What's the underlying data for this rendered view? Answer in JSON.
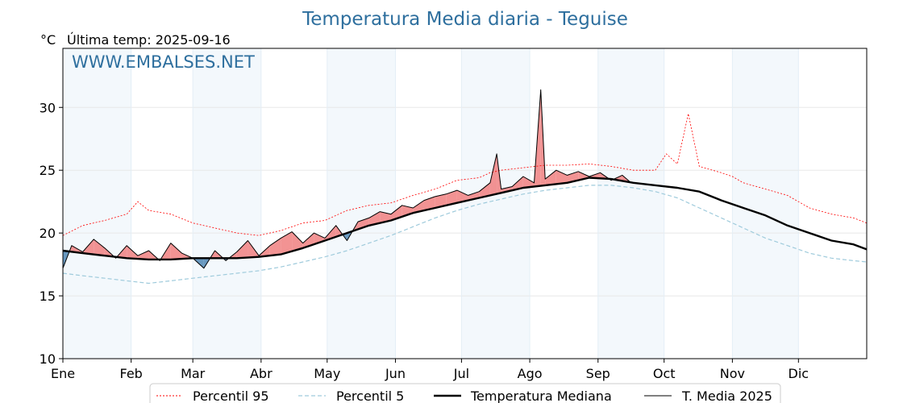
{
  "chart_data": {
    "type": "line",
    "title": "Temperatura Media diaria - Teguise",
    "unit_label": "°C",
    "last_temp_label": "Última temp: 2025-09-16",
    "watermark": "WWW.EMBALSES.NET",
    "ylim": [
      10,
      34.7
    ],
    "yticks": [
      10,
      15,
      20,
      25,
      30
    ],
    "xlim": [
      1,
      366
    ],
    "months": [
      {
        "label": "Ene",
        "day": 1
      },
      {
        "label": "Feb",
        "day": 32
      },
      {
        "label": "Mar",
        "day": 60
      },
      {
        "label": "Abr",
        "day": 91
      },
      {
        "label": "May",
        "day": 121
      },
      {
        "label": "Jun",
        "day": 152
      },
      {
        "label": "Jul",
        "day": 182
      },
      {
        "label": "Ago",
        "day": 213
      },
      {
        "label": "Sep",
        "day": 244
      },
      {
        "label": "Oct",
        "day": 274
      },
      {
        "label": "Nov",
        "day": 305
      },
      {
        "label": "Dic",
        "day": 335
      }
    ],
    "series": [
      {
        "name": "Percentil 95",
        "color": "#ff0000",
        "x": [
          1,
          10,
          20,
          30,
          35,
          40,
          50,
          60,
          70,
          80,
          90,
          100,
          110,
          120,
          130,
          140,
          150,
          160,
          170,
          180,
          190,
          195,
          200,
          210,
          220,
          230,
          240,
          250,
          260,
          270,
          275,
          280,
          285,
          290,
          300,
          305,
          310,
          320,
          330,
          340,
          350,
          360,
          366
        ],
        "y": [
          19.8,
          20.6,
          21.0,
          21.5,
          22.5,
          21.8,
          21.5,
          20.8,
          20.4,
          20.0,
          19.8,
          20.2,
          20.8,
          21.0,
          21.8,
          22.2,
          22.4,
          23.0,
          23.5,
          24.2,
          24.4,
          24.8,
          25.0,
          25.2,
          25.4,
          25.4,
          25.5,
          25.3,
          25.0,
          25.0,
          26.3,
          25.5,
          29.5,
          25.3,
          24.8,
          24.5,
          24.0,
          23.5,
          23.0,
          22.0,
          21.5,
          21.2,
          20.8
        ]
      },
      {
        "name": "Percentil 5",
        "color": "#9fcbdc",
        "x": [
          1,
          10,
          20,
          30,
          40,
          50,
          60,
          70,
          80,
          90,
          100,
          110,
          120,
          130,
          140,
          150,
          160,
          170,
          180,
          190,
          200,
          210,
          220,
          230,
          240,
          250,
          260,
          270,
          280,
          290,
          300,
          310,
          320,
          330,
          340,
          350,
          360,
          366
        ],
        "y": [
          16.8,
          16.6,
          16.4,
          16.2,
          16.0,
          16.2,
          16.4,
          16.6,
          16.8,
          17.0,
          17.3,
          17.7,
          18.1,
          18.6,
          19.2,
          19.8,
          20.5,
          21.2,
          21.8,
          22.3,
          22.7,
          23.1,
          23.4,
          23.6,
          23.8,
          23.8,
          23.6,
          23.3,
          22.8,
          22.0,
          21.2,
          20.4,
          19.6,
          19.0,
          18.4,
          18.0,
          17.8,
          17.7
        ]
      },
      {
        "name": "Temperatura Mediana",
        "color": "#000000",
        "x": [
          1,
          10,
          20,
          30,
          40,
          50,
          60,
          70,
          80,
          90,
          100,
          110,
          120,
          130,
          140,
          150,
          160,
          170,
          180,
          190,
          200,
          210,
          220,
          230,
          240,
          250,
          260,
          270,
          280,
          290,
          300,
          310,
          320,
          330,
          340,
          350,
          360,
          366
        ],
        "y": [
          18.6,
          18.4,
          18.2,
          18.0,
          17.9,
          17.9,
          18.0,
          18.0,
          18.0,
          18.1,
          18.3,
          18.8,
          19.4,
          20.0,
          20.6,
          21.0,
          21.6,
          22.0,
          22.4,
          22.8,
          23.2,
          23.6,
          23.8,
          24.0,
          24.4,
          24.3,
          24.0,
          23.8,
          23.6,
          23.3,
          22.6,
          22.0,
          21.4,
          20.6,
          20.0,
          19.4,
          19.1,
          18.7
        ]
      },
      {
        "name": "T. Media 2025",
        "color": "#000000",
        "x": [
          1,
          5,
          10,
          15,
          20,
          25,
          30,
          35,
          40,
          45,
          50,
          55,
          60,
          65,
          70,
          75,
          80,
          85,
          90,
          95,
          100,
          105,
          110,
          115,
          120,
          125,
          130,
          135,
          140,
          145,
          150,
          155,
          160,
          165,
          170,
          175,
          180,
          185,
          190,
          195,
          198,
          200,
          205,
          210,
          215,
          218,
          220,
          225,
          230,
          235,
          240,
          245,
          250,
          255,
          259
        ],
        "y": [
          17.2,
          19.0,
          18.5,
          19.5,
          18.8,
          18.0,
          19.0,
          18.2,
          18.6,
          17.8,
          19.2,
          18.4,
          18.0,
          17.2,
          18.6,
          17.8,
          18.5,
          19.4,
          18.2,
          19.0,
          19.6,
          20.1,
          19.2,
          20.0,
          19.6,
          20.6,
          19.4,
          20.9,
          21.2,
          21.7,
          21.5,
          22.2,
          22.0,
          22.6,
          22.9,
          23.1,
          23.4,
          23.0,
          23.3,
          24.0,
          26.3,
          23.5,
          23.7,
          24.5,
          24.0,
          31.4,
          24.3,
          25.0,
          24.6,
          24.9,
          24.5,
          24.8,
          24.2,
          24.6,
          24.0
        ]
      }
    ],
    "legend": {
      "placement": "bottom",
      "entries": [
        "Percentil 95",
        "Percentil 5",
        "Temperatura Mediana",
        "T. Media 2025"
      ]
    },
    "fill_above_color": "#f08080",
    "fill_below_color": "#4f87b4",
    "grid": true
  }
}
